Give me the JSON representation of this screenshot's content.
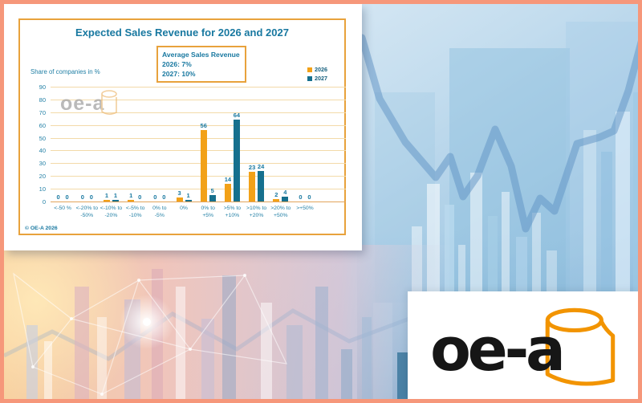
{
  "colors": {
    "frame": "#F6977A",
    "card_border": "#E8A23C",
    "title_teal": "#1878A0",
    "text_teal": "#2380A6",
    "grid": "#F3DAA9",
    "axis": "#E2A55C",
    "bar_2026": "#F2A118",
    "bar_2027": "#16708E",
    "logo_orange": "#F29400",
    "logo_black": "#161616"
  },
  "chart_data": {
    "type": "bar",
    "title": "Expected Sales Revenue for 2026 and 2027",
    "ylabel": "Share of companies in %",
    "ylim": [
      0,
      90
    ],
    "ytick_step": 10,
    "grid": true,
    "legend_position": "top-right",
    "categories": [
      [
        "<-50 %"
      ],
      [
        "<-20% to",
        "-50%"
      ],
      [
        "<-10% to",
        "-20%"
      ],
      [
        "<-5% to",
        "-10%"
      ],
      [
        "0% to",
        "-5%"
      ],
      [
        "0%"
      ],
      [
        "0% to",
        "+5%"
      ],
      [
        ">5% to",
        "+10%"
      ],
      [
        ">10% to",
        "+20%"
      ],
      [
        ">20% to",
        "+50%"
      ],
      [
        ">+50%"
      ]
    ],
    "series": [
      {
        "name": "2026",
        "color": "#F2A118",
        "values": [
          0,
          0,
          1,
          1,
          0,
          3,
          56,
          14,
          23,
          2,
          0
        ]
      },
      {
        "name": "2027",
        "color": "#16708E",
        "values": [
          0,
          0,
          1,
          0,
          0,
          1,
          5,
          64,
          24,
          4,
          0
        ]
      }
    ],
    "annotation_box": {
      "title": "Average Sales Revenue",
      "lines": [
        "2026: 7%",
        "2027: 10%"
      ]
    },
    "copyright": "© OE-A 2026",
    "watermark_text": "oe-a"
  },
  "logo": {
    "text": "oe-a",
    "icon": "rolled-film-icon"
  }
}
